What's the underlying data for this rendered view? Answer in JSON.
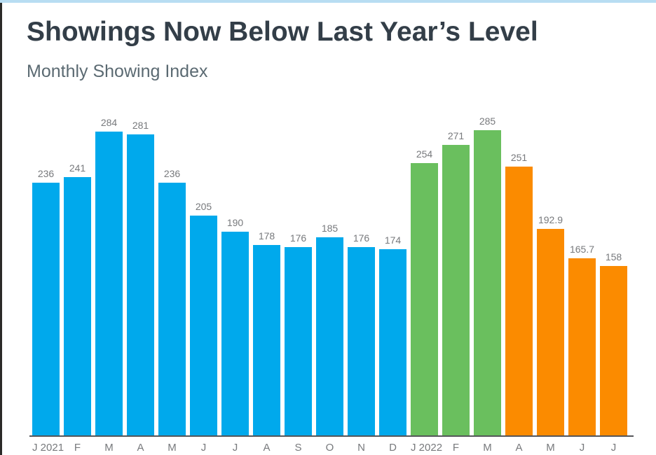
{
  "header": {
    "title": "Showings Now Below Last Year’s Level",
    "subtitle": "Monthly Showing Index"
  },
  "chart_data": {
    "type": "bar",
    "title": "Showings Now Below Last Year’s Level",
    "subtitle": "Monthly Showing Index",
    "xlabel": "",
    "ylabel": "",
    "categories": [
      "J 2021",
      "F",
      "M",
      "A",
      "M",
      "J",
      "J",
      "A",
      "S",
      "O",
      "N",
      "D",
      "J 2022",
      "F",
      "M",
      "A",
      "M",
      "J",
      "J"
    ],
    "values": [
      236,
      241,
      284,
      281,
      236,
      205,
      190,
      178,
      176,
      185,
      176,
      174,
      254,
      271,
      285,
      251,
      192.9,
      165.7,
      158
    ],
    "value_labels": [
      "236",
      "241",
      "284",
      "281",
      "236",
      "205",
      "190",
      "178",
      "176",
      "185",
      "176",
      "174",
      "254",
      "271",
      "285",
      "251",
      "192.9",
      "165.7",
      "158"
    ],
    "colors": [
      "#00a9ec",
      "#00a9ec",
      "#00a9ec",
      "#00a9ec",
      "#00a9ec",
      "#00a9ec",
      "#00a9ec",
      "#00a9ec",
      "#00a9ec",
      "#00a9ec",
      "#00a9ec",
      "#00a9ec",
      "#6abf5e",
      "#6abf5e",
      "#6abf5e",
      "#fb8b00",
      "#fb8b00",
      "#fb8b00",
      "#fb8b00"
    ],
    "ylim": [
      0,
      285
    ],
    "grid": false,
    "legend": "none",
    "y_axis_visible": false,
    "value_labels_position": "above-bars"
  },
  "style_colors": {
    "bar_blue_2021": "#00a9ec",
    "bar_green_2022": "#6abf5e",
    "bar_orange_recent": "#fb8b00",
    "title_text": "#333e48",
    "subtitle_text": "#5b6a72",
    "label_text": "#77797c",
    "axis_line": "#55565a",
    "top_accent_strip": "#b8ddf2",
    "left_edge_strip": "#2b2a28",
    "background": "#ffffff"
  }
}
